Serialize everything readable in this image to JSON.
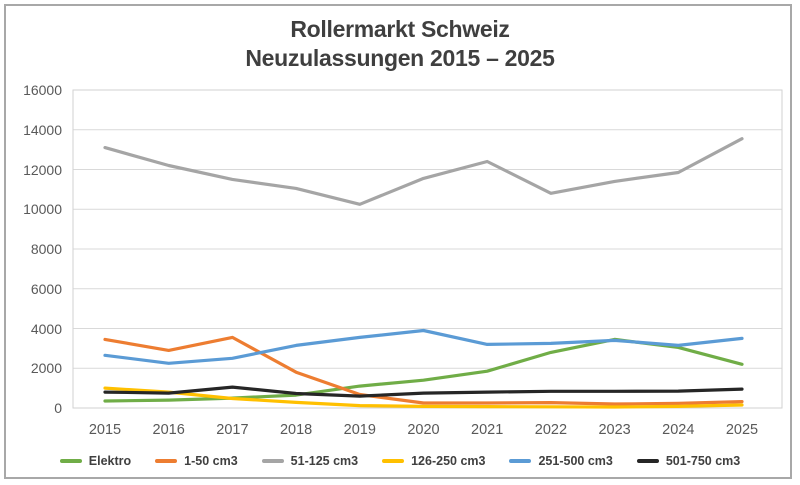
{
  "window": {
    "background": "#ffffff",
    "frame_border_color": "#a8a8a8"
  },
  "chart_data": {
    "type": "line",
    "title": "Rollermarkt Schweiz",
    "subtitle": "Neuzulassungen 2015 – 2025",
    "categories": [
      "2015",
      "2016",
      "2017",
      "2018",
      "2019",
      "2020",
      "2021",
      "2022",
      "2023",
      "2024",
      "2025"
    ],
    "series": [
      {
        "name": "Elektro",
        "color": "#70AD47",
        "values": [
          350,
          400,
          500,
          650,
          1100,
          1400,
          1850,
          2800,
          3450,
          3050,
          2200
        ]
      },
      {
        "name": "1-50 cm3",
        "color": "#ED7D31",
        "values": [
          3450,
          2900,
          3550,
          1800,
          680,
          250,
          250,
          270,
          200,
          230,
          320
        ]
      },
      {
        "name": "51-125 cm3",
        "color": "#A5A5A5",
        "values": [
          13100,
          12200,
          11500,
          11050,
          10250,
          11550,
          12400,
          10800,
          11400,
          11850,
          13550
        ]
      },
      {
        "name": "126-250 cm3",
        "color": "#FFC000",
        "values": [
          1000,
          800,
          480,
          280,
          120,
          80,
          70,
          60,
          50,
          80,
          150
        ]
      },
      {
        "name": "251-500 cm3",
        "color": "#5B9BD5",
        "values": [
          2650,
          2250,
          2500,
          3150,
          3550,
          3900,
          3200,
          3250,
          3400,
          3150,
          3500
        ]
      },
      {
        "name": "501-750 cm3",
        "color": "#262626",
        "values": [
          800,
          750,
          1050,
          730,
          600,
          750,
          800,
          840,
          840,
          850,
          950
        ]
      }
    ],
    "xlabel": "",
    "ylabel": "",
    "ylim": [
      0,
      16000
    ],
    "y_step": 2000,
    "y_tick_labels": [
      "0",
      "2000",
      "4000",
      "6000",
      "8000",
      "10000",
      "12000",
      "14000",
      "16000"
    ],
    "grid": "horizontal",
    "gridline_color": "#d9d9d9",
    "plot_border_color": "#d2d2d2",
    "legend_position": "bottom"
  }
}
